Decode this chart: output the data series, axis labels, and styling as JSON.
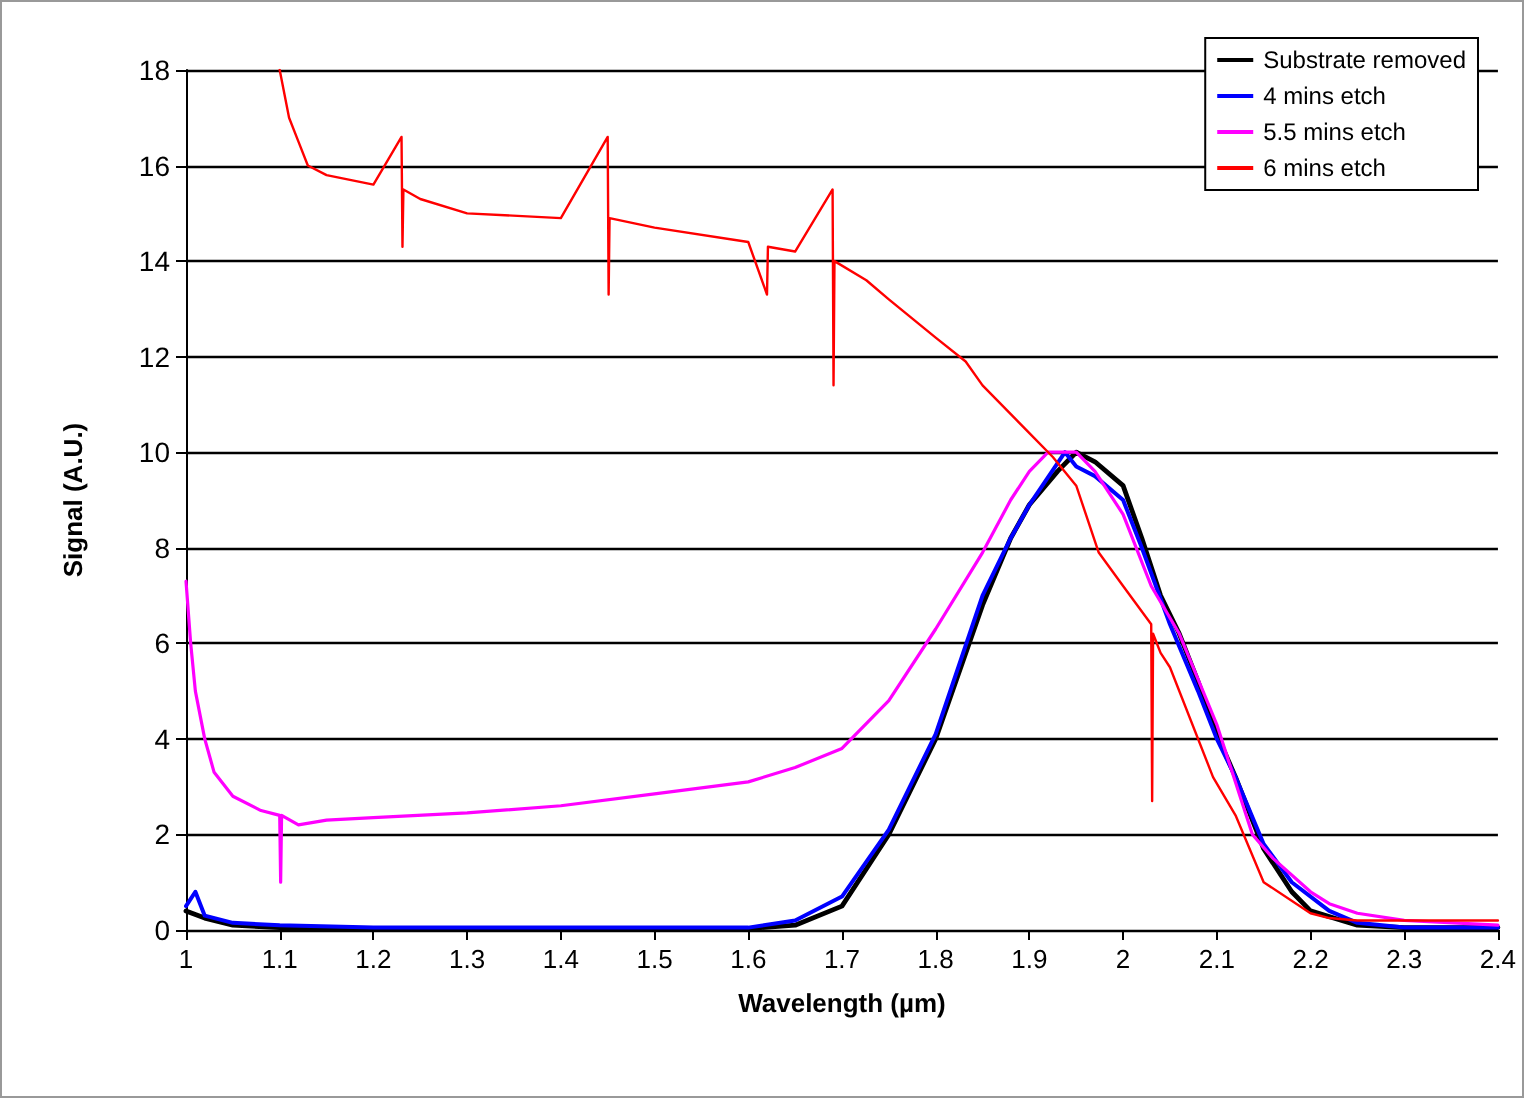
{
  "chart_data": {
    "type": "line",
    "xlabel": "Wavelength (µm)",
    "ylabel": "Signal (A.U.)",
    "xlim": [
      1,
      2.4
    ],
    "xticks": [
      1,
      1.1,
      1.2,
      1.3,
      1.4,
      1.5,
      1.6,
      1.7,
      1.8,
      1.9,
      2,
      2.1,
      2.2,
      2.3,
      2.4
    ],
    "ylim": [
      0,
      18
    ],
    "yticks": [
      0,
      2,
      4,
      6,
      8,
      10,
      12,
      14,
      16,
      18
    ],
    "grid": "y",
    "legend": "top right",
    "marker": "none",
    "line_style": "solid",
    "series": [
      {
        "name": "Substrate removed",
        "color": "#000000",
        "x": [
          1,
          1.02,
          1.05,
          1.1,
          1.2,
          1.4,
          1.6,
          1.65,
          1.7,
          1.75,
          1.8,
          1.85,
          1.88,
          1.9,
          1.93,
          1.95,
          1.97,
          2,
          2.02,
          2.04,
          2.06,
          2.08,
          2.1,
          2.12,
          2.15,
          2.18,
          2.2,
          2.25,
          2.3,
          2.4
        ],
        "values": [
          0.4,
          0.25,
          0.1,
          0.05,
          0.03,
          0.02,
          0.03,
          0.1,
          0.5,
          2.0,
          4.0,
          6.8,
          8.2,
          8.9,
          9.6,
          10.0,
          9.8,
          9.3,
          8.2,
          7.0,
          6.2,
          5.2,
          4.1,
          3.2,
          1.7,
          0.8,
          0.4,
          0.1,
          0.05,
          0.05
        ]
      },
      {
        "name": "4 mins etch",
        "color": "#0000ff",
        "x": [
          1,
          1.01,
          1.02,
          1.05,
          1.1,
          1.2,
          1.23,
          1.4,
          1.6,
          1.65,
          1.7,
          1.75,
          1.8,
          1.85,
          1.88,
          1.9,
          1.938,
          1.95,
          1.97,
          2,
          2.02,
          2.05,
          2.08,
          2.1,
          2.12,
          2.15,
          2.18,
          2.22,
          2.25,
          2.3,
          2.4
        ],
        "values": [
          0.5,
          0.8,
          0.3,
          0.15,
          0.1,
          0.05,
          0.05,
          0.05,
          0.05,
          0.2,
          0.7,
          2.1,
          4.1,
          7.0,
          8.2,
          8.9,
          10.0,
          9.7,
          9.5,
          9.0,
          8.0,
          6.4,
          5.0,
          4.0,
          3.2,
          1.8,
          1.0,
          0.4,
          0.15,
          0.05,
          0.05
        ]
      },
      {
        "name": "5.5 mins etch",
        "color": "#ff00ff",
        "x": [
          1,
          1.005,
          1.01,
          1.02,
          1.03,
          1.05,
          1.08,
          1.1,
          1.101,
          1.102,
          1.12,
          1.15,
          1.2,
          1.3,
          1.4,
          1.5,
          1.6,
          1.65,
          1.7,
          1.75,
          1.8,
          1.85,
          1.88,
          1.9,
          1.92,
          1.95,
          1.97,
          2,
          2.03,
          2.06,
          2.1,
          2.138,
          2.16,
          2.2,
          2.22,
          2.25,
          2.3,
          2.4
        ],
        "values": [
          7.3,
          6.0,
          5.0,
          4.0,
          3.3,
          2.8,
          2.5,
          2.4,
          1.0,
          2.4,
          2.2,
          2.3,
          2.35,
          2.45,
          2.6,
          2.85,
          3.1,
          3.4,
          3.8,
          4.8,
          6.3,
          7.9,
          9.0,
          9.6,
          10.0,
          10.0,
          9.6,
          8.7,
          7.2,
          6.2,
          4.3,
          2.0,
          1.5,
          0.8,
          0.55,
          0.35,
          0.2,
          0.1
        ]
      },
      {
        "name": "6 mins etch",
        "color": "#ff0000",
        "x": [
          1.1,
          1.11,
          1.12,
          1.13,
          1.15,
          1.2,
          1.23,
          1.231,
          1.232,
          1.25,
          1.3,
          1.4,
          1.45,
          1.451,
          1.452,
          1.5,
          1.6,
          1.62,
          1.621,
          1.65,
          1.69,
          1.691,
          1.692,
          1.726,
          1.75,
          1.8,
          1.832,
          1.85,
          1.9,
          1.925,
          1.95,
          1.974,
          2,
          2.03,
          2.031,
          2.032,
          2.04,
          2.05,
          2.096,
          2.12,
          2.15,
          2.2,
          2.22,
          2.25,
          2.3,
          2.4
        ],
        "values": [
          18,
          17,
          16.5,
          16,
          15.8,
          15.6,
          16.6,
          14.3,
          15.5,
          15.3,
          15.0,
          14.9,
          16.6,
          13.3,
          14.9,
          14.7,
          14.4,
          13.3,
          14.3,
          14.2,
          15.5,
          11.4,
          14.0,
          13.6,
          13.2,
          12.4,
          11.9,
          11.4,
          10.4,
          9.9,
          9.3,
          7.9,
          7.2,
          6.4,
          2.7,
          6.2,
          5.8,
          5.5,
          3.2,
          2.4,
          1.0,
          0.35,
          0.25,
          0.2,
          0.2,
          0.2
        ]
      }
    ]
  }
}
